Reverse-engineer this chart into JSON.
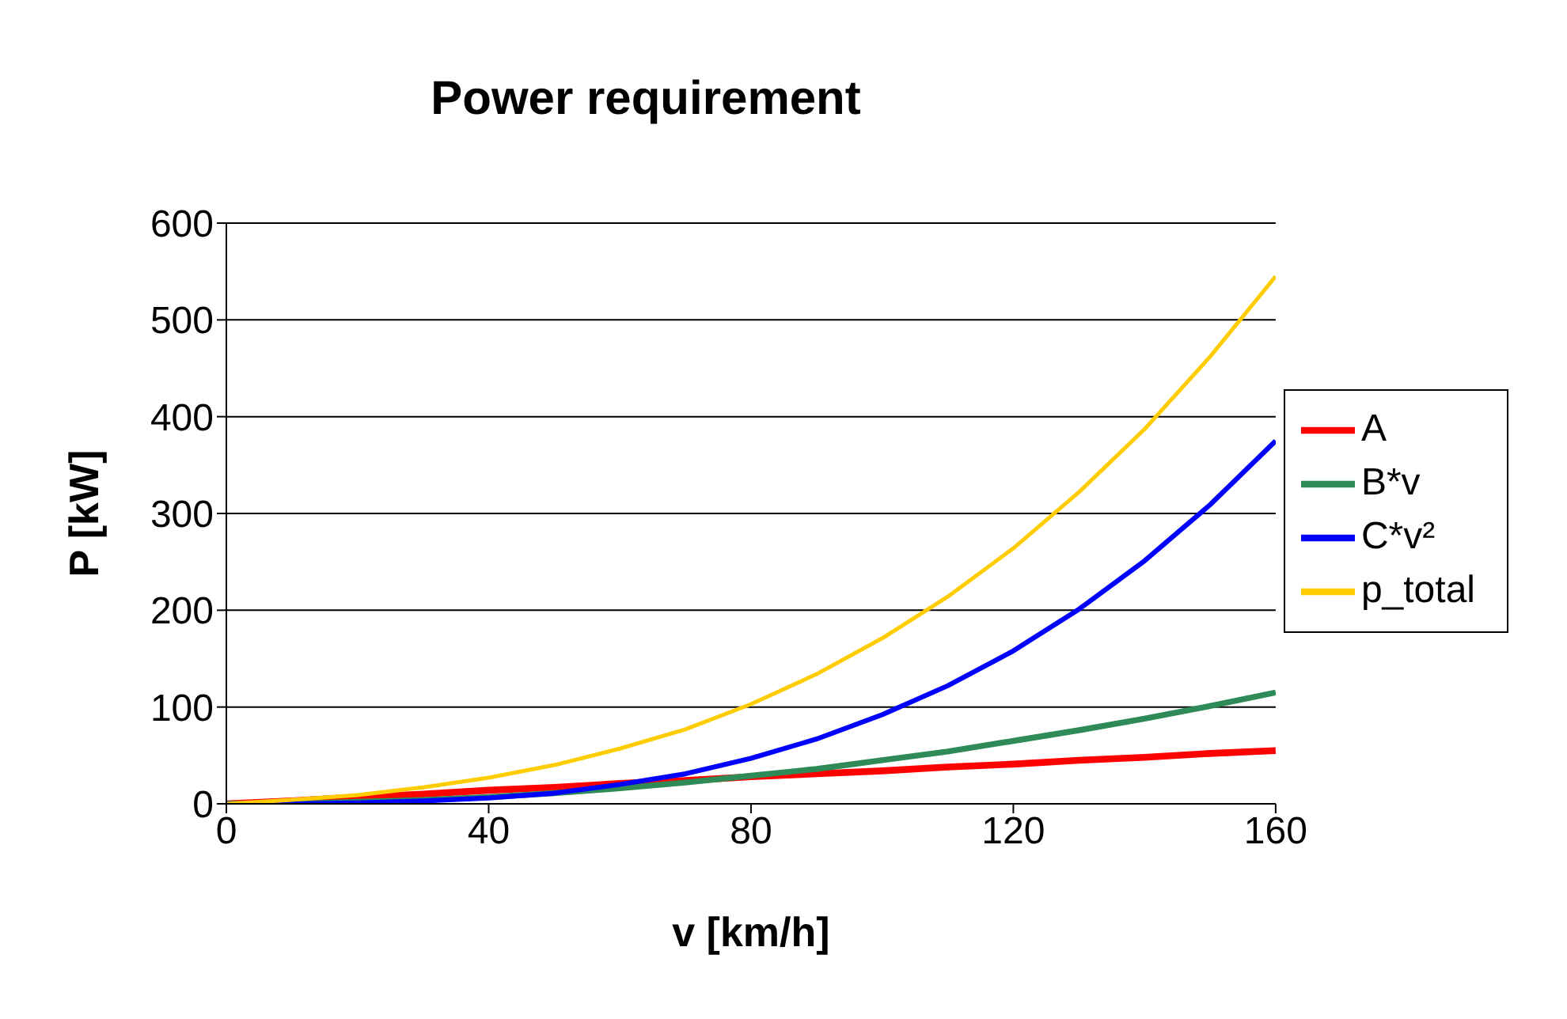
{
  "chart_data": {
    "type": "line",
    "title": "Power requirement",
    "xlabel": "v [km/h]",
    "ylabel": "P [kW]",
    "x": [
      0,
      10,
      20,
      30,
      40,
      50,
      60,
      70,
      80,
      90,
      100,
      110,
      120,
      130,
      140,
      150,
      160
    ],
    "series": [
      {
        "name": "A",
        "color": "#ff0000",
        "values": [
          0,
          3,
          7,
          10,
          14,
          17,
          21,
          24,
          28,
          31,
          34,
          38,
          41,
          45,
          48,
          52,
          55
        ]
      },
      {
        "name": "B*v",
        "color": "#2e8b57",
        "values": [
          0,
          0,
          2,
          4,
          7,
          11,
          16,
          22,
          29,
          36,
          45,
          54,
          65,
          76,
          88,
          101,
          115
        ]
      },
      {
        "name": "C*v²",
        "color": "#0000ff",
        "values": [
          0,
          0,
          1,
          3,
          6,
          11,
          20,
          31,
          47,
          67,
          92,
          122,
          158,
          201,
          251,
          309,
          375
        ]
      },
      {
        "name": "p_total",
        "color": "#ffcc00",
        "values": [
          0,
          4,
          9,
          17,
          27,
          40,
          57,
          77,
          103,
          134,
          171,
          214,
          264,
          322,
          387,
          462,
          545
        ]
      }
    ],
    "xlim": [
      0,
      160
    ],
    "xticks": [
      0,
      40,
      80,
      120,
      160
    ],
    "ylim": [
      0,
      600
    ],
    "yticks": [
      0,
      100,
      200,
      300,
      400,
      500,
      600
    ],
    "grid": "y",
    "legend": "right",
    "marker": "none",
    "line_style": "solid"
  }
}
